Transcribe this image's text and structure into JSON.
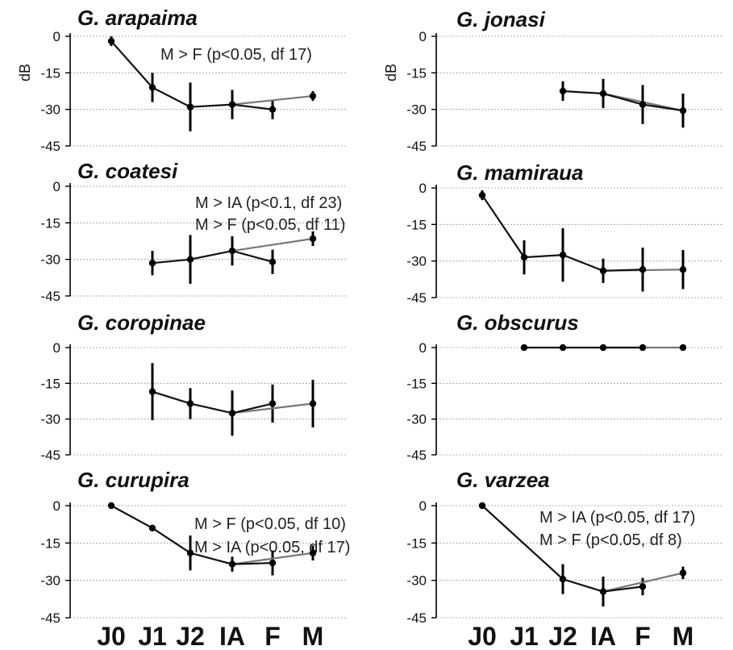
{
  "x_categories": [
    "J0",
    "J1",
    "J2",
    "IA",
    "F",
    "M"
  ],
  "ylabel": "dB",
  "chart_data": [
    {
      "type": "line",
      "title": "G. arapaima",
      "ylabel": "dB",
      "ylim": [
        -45,
        0
      ],
      "yticks": [
        0,
        -15,
        -30,
        -45
      ],
      "categories": [
        "J0",
        "J1",
        "J2",
        "IA",
        "F",
        "M"
      ],
      "points": [
        {
          "x": "J0",
          "y": -2,
          "err": 2
        },
        {
          "x": "J1",
          "y": -21,
          "err": 6
        },
        {
          "x": "J2",
          "y": -29,
          "err": 10
        },
        {
          "x": "IA",
          "y": -28,
          "err": 6
        },
        {
          "x": "F",
          "y": -30,
          "err": 4
        },
        {
          "x": "M",
          "y": -24.5,
          "err": 2
        }
      ],
      "main_path": [
        "J0",
        "J1",
        "J2",
        "IA",
        "F"
      ],
      "branch_path": [
        "IA",
        "M"
      ],
      "annotations": [
        "M > F (p<0.05, df 17)"
      ]
    },
    {
      "type": "line",
      "title": "G. jonasi",
      "ylabel": "dB",
      "ylim": [
        -45,
        0
      ],
      "yticks": [
        0,
        -15,
        -30,
        -45
      ],
      "categories": [
        "J0",
        "J1",
        "J2",
        "IA",
        "F",
        "M"
      ],
      "points": [
        {
          "x": "J2",
          "y": -22.5,
          "err": 4
        },
        {
          "x": "IA",
          "y": -23.5,
          "err": 6
        },
        {
          "x": "F",
          "y": -28,
          "err": 8
        },
        {
          "x": "M",
          "y": -30.5,
          "err": 7
        }
      ],
      "main_path": [
        "J2",
        "IA",
        "F",
        "M"
      ],
      "branch_path": [
        "IA",
        "M"
      ],
      "annotations": []
    },
    {
      "type": "line",
      "title": "G. coatesi",
      "ylim": [
        -45,
        0
      ],
      "yticks": [
        0,
        -15,
        -30,
        -45
      ],
      "categories": [
        "J0",
        "J1",
        "J2",
        "IA",
        "F",
        "M"
      ],
      "points": [
        {
          "x": "J1",
          "y": -31.5,
          "err": 5
        },
        {
          "x": "J2",
          "y": -30,
          "err": 10
        },
        {
          "x": "IA",
          "y": -26.5,
          "err": 6
        },
        {
          "x": "F",
          "y": -31,
          "err": 5
        },
        {
          "x": "M",
          "y": -21.5,
          "err": 3
        }
      ],
      "main_path": [
        "J1",
        "J2",
        "IA",
        "F"
      ],
      "branch_path": [
        "IA",
        "M"
      ],
      "annotations": [
        "M > IA (p<0.1, df 23)",
        "M > F  (p<0.05, df 11)"
      ]
    },
    {
      "type": "line",
      "title": "G. mamiraua",
      "ylim": [
        -45,
        0
      ],
      "yticks": [
        0,
        -15,
        -30,
        -45
      ],
      "categories": [
        "J0",
        "J1",
        "J2",
        "IA",
        "F",
        "M"
      ],
      "points": [
        {
          "x": "J0",
          "y": -3,
          "err": 2
        },
        {
          "x": "J1",
          "y": -28.5,
          "err": 7
        },
        {
          "x": "J2",
          "y": -27.5,
          "err": 11
        },
        {
          "x": "IA",
          "y": -34,
          "err": 5
        },
        {
          "x": "F",
          "y": -33.5,
          "err": 9
        },
        {
          "x": "M",
          "y": -33.5,
          "err": 8
        }
      ],
      "main_path": [
        "J0",
        "J1",
        "J2",
        "IA",
        "F"
      ],
      "branch_path": [
        "IA",
        "M"
      ],
      "annotations": []
    },
    {
      "type": "line",
      "title": "G. coropinae",
      "ylim": [
        -45,
        0
      ],
      "yticks": [
        0,
        -15,
        -30,
        -45
      ],
      "categories": [
        "J0",
        "J1",
        "J2",
        "IA",
        "F",
        "M"
      ],
      "points": [
        {
          "x": "J1",
          "y": -18.5,
          "err": 12
        },
        {
          "x": "J2",
          "y": -23.5,
          "err": 6.5
        },
        {
          "x": "IA",
          "y": -27.5,
          "err": 9.5
        },
        {
          "x": "F",
          "y": -23.5,
          "err": 8
        },
        {
          "x": "M",
          "y": -23.5,
          "err": 10
        }
      ],
      "main_path": [
        "J1",
        "J2",
        "IA",
        "F"
      ],
      "branch_path": [
        "IA",
        "M"
      ],
      "annotations": []
    },
    {
      "type": "line",
      "title": "G. obscurus",
      "ylim": [
        -45,
        0
      ],
      "yticks": [
        0,
        -15,
        -30,
        -45
      ],
      "categories": [
        "J0",
        "J1",
        "J2",
        "IA",
        "F",
        "M"
      ],
      "points": [
        {
          "x": "J1",
          "y": 0,
          "err": 0
        },
        {
          "x": "J2",
          "y": 0,
          "err": 0
        },
        {
          "x": "IA",
          "y": 0,
          "err": 0
        },
        {
          "x": "F",
          "y": 0,
          "err": 0
        },
        {
          "x": "M",
          "y": 0,
          "err": 0
        }
      ],
      "main_path": [
        "J1",
        "J2",
        "IA",
        "F"
      ],
      "branch_path": [
        "IA",
        "M"
      ],
      "annotations": []
    },
    {
      "type": "line",
      "title": "G. curupira",
      "ylim": [
        -45,
        0
      ],
      "yticks": [
        0,
        -15,
        -30,
        -45
      ],
      "categories": [
        "J0",
        "J1",
        "J2",
        "IA",
        "F",
        "M"
      ],
      "points": [
        {
          "x": "J0",
          "y": 0,
          "err": 0
        },
        {
          "x": "J1",
          "y": -9,
          "err": 0
        },
        {
          "x": "J2",
          "y": -19,
          "err": 7
        },
        {
          "x": "IA",
          "y": -23.5,
          "err": 3
        },
        {
          "x": "F",
          "y": -23,
          "err": 5
        },
        {
          "x": "M",
          "y": -19,
          "err": 3
        }
      ],
      "main_path": [
        "J0",
        "J1",
        "J2",
        "IA",
        "F"
      ],
      "branch_path": [
        "IA",
        "M"
      ],
      "annotations": [
        "M > F (p<0.05, df 10)",
        "M > IA (p<0.05, df 17)"
      ]
    },
    {
      "type": "line",
      "title": "G. varzea",
      "ylim": [
        -45,
        0
      ],
      "yticks": [
        0,
        -15,
        -30,
        -45
      ],
      "categories": [
        "J0",
        "J1",
        "J2",
        "IA",
        "F",
        "M"
      ],
      "points": [
        {
          "x": "J0",
          "y": 0,
          "err": 0
        },
        {
          "x": "J2",
          "y": -29.5,
          "err": 6
        },
        {
          "x": "IA",
          "y": -34.5,
          "err": 6
        },
        {
          "x": "F",
          "y": -32.5,
          "err": 3.5
        },
        {
          "x": "M",
          "y": -27,
          "err": 2.5
        }
      ],
      "main_path": [
        "J0",
        "J2",
        "IA",
        "F"
      ],
      "branch_path": [
        "IA",
        "M"
      ],
      "annotations": [
        "M > IA (p<0.05, df 17)",
        "M > F  (p<0.05, df 8)"
      ]
    }
  ]
}
